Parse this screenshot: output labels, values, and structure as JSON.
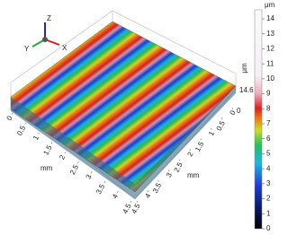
{
  "triad": {
    "z": "Z",
    "y": "Y",
    "x": "X"
  },
  "colorbar": {
    "unit": "μm",
    "ticks": [
      0,
      1,
      2,
      3,
      4,
      5,
      6,
      7,
      8,
      9,
      10,
      11,
      12,
      13,
      14
    ]
  },
  "z_axis": {
    "unit": "μm",
    "max_label": "14.6",
    "min_label": "0"
  },
  "left_axis": {
    "unit": "mm",
    "ticks": [
      0,
      0.5,
      1,
      1.5,
      2,
      2.5,
      3,
      3.5,
      4,
      4.5
    ]
  },
  "right_axis": {
    "unit": "mm",
    "ticks": [
      4.5,
      4,
      3.5,
      3,
      2.5,
      2,
      1.5,
      1,
      0.5,
      0
    ]
  }
}
